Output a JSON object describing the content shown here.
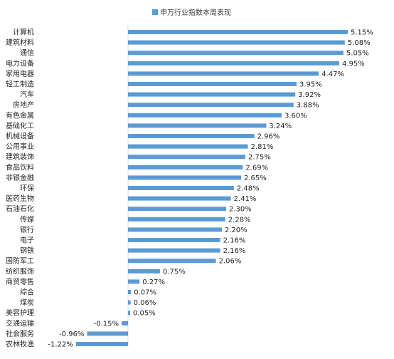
{
  "chart_data": {
    "type": "bar",
    "orientation": "horizontal",
    "title": "",
    "legend": {
      "position": "top",
      "label": "申万行业指数本周表现"
    },
    "series": [
      {
        "name": "申万行业指数本周表现",
        "color": "#5B9BD5"
      }
    ],
    "categories": [
      "计算机",
      "建筑材料",
      "通信",
      "电力设备",
      "家用电器",
      "轻工制造",
      "汽车",
      "房地产",
      "有色金属",
      "基础化工",
      "机械设备",
      "公用事业",
      "建筑装饰",
      "食品饮料",
      "非银金融",
      "环保",
      "医药生物",
      "石油石化",
      "传媒",
      "银行",
      "电子",
      "钢铁",
      "国防军工",
      "纺织服饰",
      "商贸零售",
      "综合",
      "煤炭",
      "美容护理",
      "交通运输",
      "社会服务",
      "农林牧渔"
    ],
    "values": [
      5.15,
      5.08,
      5.05,
      4.95,
      4.47,
      3.95,
      3.92,
      3.88,
      3.6,
      3.24,
      2.96,
      2.81,
      2.75,
      2.69,
      2.65,
      2.48,
      2.41,
      2.3,
      2.28,
      2.2,
      2.16,
      2.16,
      2.06,
      0.75,
      0.27,
      0.07,
      0.06,
      0.05,
      -0.15,
      -0.96,
      -1.22
    ],
    "value_labels": [
      "5.15%",
      "5.08%",
      "5.05%",
      "4.95%",
      "4.47%",
      "3.95%",
      "3.92%",
      "3.88%",
      "3.60%",
      "3.24%",
      "2.96%",
      "2.81%",
      "2.75%",
      "2.69%",
      "2.65%",
      "2.48%",
      "2.41%",
      "2.30%",
      "2.28%",
      "2.20%",
      "2.16%",
      "2.16%",
      "2.06%",
      "0.75%",
      "0.27%",
      "0.07%",
      "0.06%",
      "0.05%",
      "-0.15%",
      "-0.96%",
      "-1.22%"
    ],
    "unit": "%",
    "grid": false
  }
}
